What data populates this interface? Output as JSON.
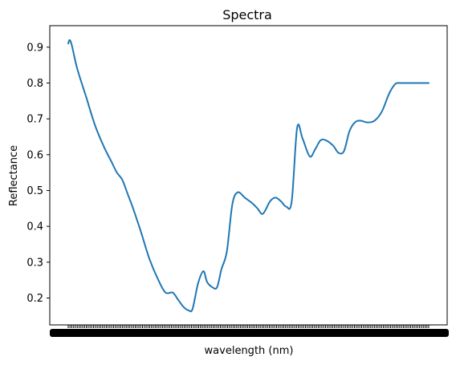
{
  "chart_data": {
    "type": "line",
    "title": "Spectra",
    "xlabel": "wavelength (nm)",
    "ylabel": "Reflectance",
    "ylim": [
      0.125,
      0.96
    ],
    "yticks": [
      0.2,
      0.3,
      0.4,
      0.5,
      0.6,
      0.7,
      0.8,
      0.9
    ],
    "ytick_labels": [
      "0.2",
      "0.3",
      "0.4",
      "0.5",
      "0.6",
      "0.7",
      "0.8",
      "0.9"
    ],
    "x_tick_count": 200,
    "x_tick_labels_illegible": true,
    "grid": false,
    "line_color": "#1f77b4",
    "series": [
      {
        "x": [
          0,
          0.004,
          0.01,
          0.025,
          0.05,
          0.075,
          0.1,
          0.12,
          0.135,
          0.15,
          0.165,
          0.18,
          0.2,
          0.225,
          0.25,
          0.27,
          0.29,
          0.305,
          0.32,
          0.335,
          0.345,
          0.36,
          0.375,
          0.385,
          0.4,
          0.413,
          0.425,
          0.44,
          0.455,
          0.47,
          0.49,
          0.51,
          0.525,
          0.54,
          0.56,
          0.575,
          0.59,
          0.605,
          0.62,
          0.635,
          0.65,
          0.67,
          0.685,
          0.7,
          0.715,
          0.735,
          0.75,
          0.765,
          0.78,
          0.795,
          0.81,
          0.83,
          0.85,
          0.87,
          0.89,
          0.905,
          0.913,
          0.92,
          0.93,
          0.945,
          0.96,
          0.975,
          0.99,
          1.0
        ],
        "y": [
          0.91,
          0.92,
          0.905,
          0.84,
          0.76,
          0.68,
          0.62,
          0.58,
          0.55,
          0.53,
          0.49,
          0.45,
          0.39,
          0.31,
          0.25,
          0.215,
          0.215,
          0.195,
          0.175,
          0.165,
          0.17,
          0.24,
          0.275,
          0.245,
          0.23,
          0.23,
          0.28,
          0.33,
          0.46,
          0.495,
          0.48,
          0.465,
          0.45,
          0.435,
          0.47,
          0.48,
          0.47,
          0.455,
          0.47,
          0.675,
          0.645,
          0.595,
          0.615,
          0.64,
          0.64,
          0.625,
          0.605,
          0.61,
          0.665,
          0.69,
          0.695,
          0.69,
          0.695,
          0.72,
          0.77,
          0.795,
          0.8,
          0.8,
          0.8,
          0.8,
          0.8,
          0.8,
          0.8,
          0.8
        ]
      }
    ]
  }
}
